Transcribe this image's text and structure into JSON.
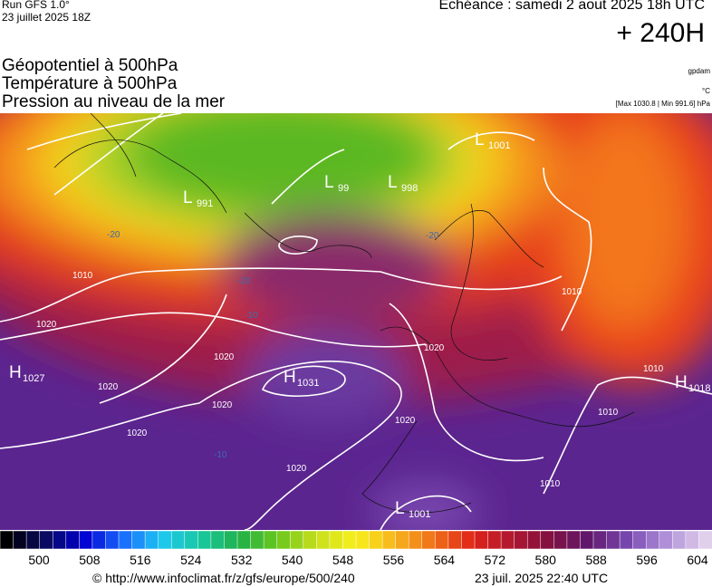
{
  "header": {
    "run": "Run GFS 1.0°",
    "run_date": "23 juillet 2025 18Z",
    "forecast": "Echéance : samedi 2 aout 2025 18h UTC",
    "lead": "+ 240H",
    "titles": [
      "Géopotentiel à 500hPa",
      "Température à 500hPa",
      "Pression au niveau de la mer"
    ],
    "units": [
      "gpdam",
      "°C",
      "[Max 1030.8 | Min 991.6] hPa"
    ]
  },
  "map": {
    "pressure_centers": [
      {
        "letter": "H",
        "value": "1027"
      },
      {
        "letter": "H",
        "value": "1031"
      },
      {
        "letter": "H",
        "value": "1018"
      },
      {
        "letter": "L",
        "value": "991"
      },
      {
        "letter": "L",
        "value": "99"
      },
      {
        "letter": "L",
        "value": "998"
      },
      {
        "letter": "L",
        "value": "1001"
      },
      {
        "letter": "L",
        "value": "1001"
      }
    ],
    "isobar_labels": [
      "1020",
      "1020",
      "1020",
      "1020",
      "1020",
      "1020",
      "1020",
      "1010",
      "1010",
      "1010",
      "1010",
      "1010",
      "1020",
      "1010"
    ],
    "temperature_labels": [
      "-20",
      "-20",
      "-20",
      "-10",
      "-10"
    ]
  },
  "colorbar": {
    "ticks": [
      500,
      508,
      516,
      524,
      532,
      540,
      548,
      556,
      564,
      572,
      580,
      588,
      596,
      604
    ]
  },
  "footer": {
    "url": "© http://www.infoclimat.fr/z/gfs/europe/500/240",
    "timestamp": "23 juil. 2025 22:40 UTC"
  }
}
